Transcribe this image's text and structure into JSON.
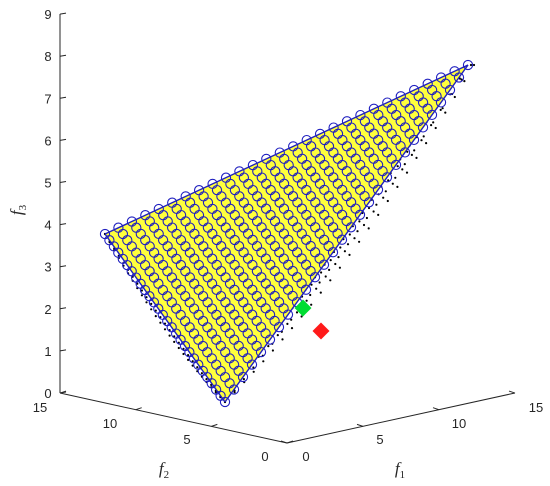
{
  "chart_data": {
    "type": "scatter3d",
    "title": "",
    "axes": {
      "f1": {
        "label": "f",
        "subscript": "1",
        "range": [
          0,
          15
        ],
        "ticks": [
          "0",
          "5",
          "10",
          "15"
        ]
      },
      "f2": {
        "label": "f",
        "subscript": "2",
        "range": [
          0,
          15
        ],
        "ticks": [
          "0",
          "5",
          "10",
          "15"
        ]
      },
      "f3": {
        "label": "f",
        "subscript": "3",
        "range": [
          0,
          9
        ],
        "ticks": [
          "0",
          "1",
          "2",
          "3",
          "4",
          "5",
          "6",
          "7",
          "8",
          "9"
        ]
      }
    },
    "surface": {
      "description_points": "triangular simplex f1+f2-ish plane",
      "vertices": [
        {
          "f1": 0,
          "f2": 0,
          "f3": 0
        },
        {
          "f1": 15,
          "f2": 0,
          "f3": 7.7
        },
        {
          "f1": 0,
          "f2": 15,
          "f3": 3.7
        }
      ],
      "fill_color": "#ffff3c",
      "edge_color": "#1f1fbf"
    },
    "series": [
      {
        "marker": "circle",
        "color": "#1f1fbf",
        "count_per_edge": 28
      },
      {
        "marker": "dot",
        "color": "#000000"
      },
      {
        "marker": "diamond",
        "color": "#00dd33",
        "point": {
          "f1": 5.2,
          "f2": 0.6,
          "f3": 2.0
        }
      },
      {
        "marker": "diamond",
        "color": "#ff1a1a",
        "point": {
          "f1": 6.2,
          "f2": 0.2,
          "f3": 1.45
        }
      }
    ],
    "grid": false,
    "legend": "none"
  }
}
